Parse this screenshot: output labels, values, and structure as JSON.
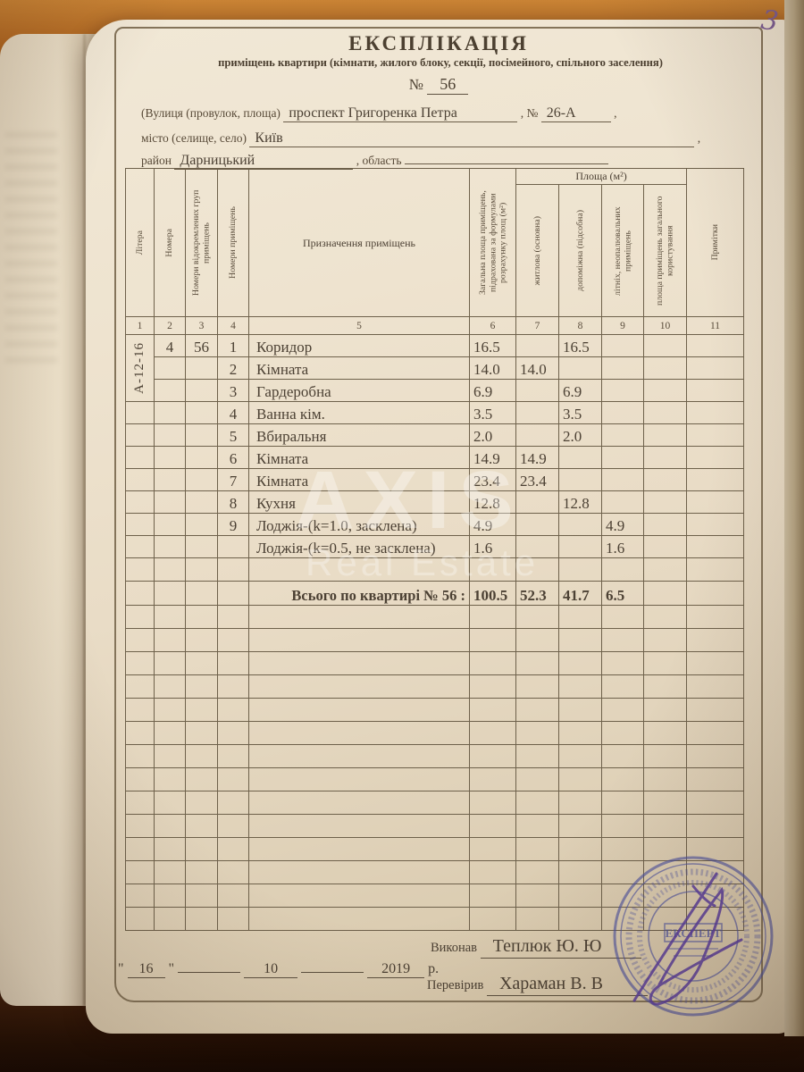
{
  "page_number": "3",
  "header": {
    "title": "ЕКСПЛІКАЦІЯ",
    "subtitle": "приміщень квартири (кімнати, жилого блоку, секції, посімейного, спільного заселення)",
    "number_label": "№",
    "number_value": "56"
  },
  "address": {
    "street_label": "(Вулиця (провулок, площа)",
    "street_value": "проспект Григоренка Петра",
    "building_label": ", №",
    "building_value": "26-А",
    "comma": ",",
    "city_label": "місто (селище, село)",
    "city_value": "Київ",
    "district_label": "район",
    "district_value": "Дарницький",
    "region_label": ", область"
  },
  "table": {
    "area_group_header": "Площа (м²)",
    "columns": [
      {
        "num": "1",
        "label": "Літера"
      },
      {
        "num": "2",
        "label": "Номера"
      },
      {
        "num": "3",
        "label": "Номери відокремлених груп приміщень"
      },
      {
        "num": "4",
        "label": "Номери приміщень"
      },
      {
        "num": "5",
        "label": "Призначення приміщень"
      },
      {
        "num": "6",
        "label": "Загальна площа приміщень, підрахована за формулами розрахунку площ (м²)"
      },
      {
        "num": "7",
        "label": "житлова (основна)"
      },
      {
        "num": "8",
        "label": "допоміжна (підсобна)"
      },
      {
        "num": "9",
        "label": "літніх, неопалювальних приміщень"
      },
      {
        "num": "10",
        "label": "площа приміщень загального користування"
      },
      {
        "num": "11",
        "label": "Примітки"
      }
    ],
    "litera": "А-12-16",
    "rows": [
      {
        "nomer": "4",
        "group": "56",
        "num": "1",
        "name": "Коридор",
        "total": "16.5",
        "living": "",
        "aux": "16.5",
        "summer": "",
        "common": "",
        "note": ""
      },
      {
        "nomer": "",
        "group": "",
        "num": "2",
        "name": "Кімната",
        "total": "14.0",
        "living": "14.0",
        "aux": "",
        "summer": "",
        "common": "",
        "note": ""
      },
      {
        "nomer": "",
        "group": "",
        "num": "3",
        "name": "Гардеробна",
        "total": "6.9",
        "living": "",
        "aux": "6.9",
        "summer": "",
        "common": "",
        "note": ""
      },
      {
        "nomer": "",
        "group": "",
        "num": "4",
        "name": "Ванна кім.",
        "total": "3.5",
        "living": "",
        "aux": "3.5",
        "summer": "",
        "common": "",
        "note": ""
      },
      {
        "nomer": "",
        "group": "",
        "num": "5",
        "name": "Вбиральня",
        "total": "2.0",
        "living": "",
        "aux": "2.0",
        "summer": "",
        "common": "",
        "note": ""
      },
      {
        "nomer": "",
        "group": "",
        "num": "6",
        "name": "Кімната",
        "total": "14.9",
        "living": "14.9",
        "aux": "",
        "summer": "",
        "common": "",
        "note": ""
      },
      {
        "nomer": "",
        "group": "",
        "num": "7",
        "name": "Кімната",
        "total": "23.4",
        "living": "23.4",
        "aux": "",
        "summer": "",
        "common": "",
        "note": ""
      },
      {
        "nomer": "",
        "group": "",
        "num": "8",
        "name": "Кухня",
        "total": "12.8",
        "living": "",
        "aux": "12.8",
        "summer": "",
        "common": "",
        "note": ""
      },
      {
        "nomer": "",
        "group": "",
        "num": "9",
        "name": "Лоджія-(k=1.0, засклена)",
        "total": "4.9",
        "living": "",
        "aux": "",
        "summer": "4.9",
        "common": "",
        "note": ""
      },
      {
        "nomer": "",
        "group": "",
        "num": "",
        "name": "Лоджія-(k=0.5, не засклена)",
        "total": "1.6",
        "living": "",
        "aux": "",
        "summer": "1.6",
        "common": "",
        "note": ""
      }
    ],
    "empty_rows_before_total": 1,
    "total_row": {
      "label": "Всього по квартирі № 56  :",
      "total": "100.5",
      "living": "52.3",
      "aux": "41.7",
      "summer": "6.5"
    },
    "empty_rows_after_total": 14
  },
  "footer": {
    "executed_label": "Виконав",
    "executed_value": "Теплюк Ю. Ю",
    "checked_label": "Перевірив",
    "checked_value": "Хараман В. В",
    "date_open_quote": "\"",
    "date_day": "16",
    "date_close_quote": "\"",
    "date_month": "10",
    "date_year": "2019",
    "date_suffix": "р."
  },
  "stamp": {
    "center_text": "ЕКСПЕРТ"
  },
  "watermark": {
    "line1": "AXIS",
    "line2": "Real Estate"
  },
  "colors": {
    "stamp_blue": "#4a50a0",
    "ink_purple": "#5b3f9e",
    "paper": "#ece0cc",
    "line": "#6e614b"
  }
}
